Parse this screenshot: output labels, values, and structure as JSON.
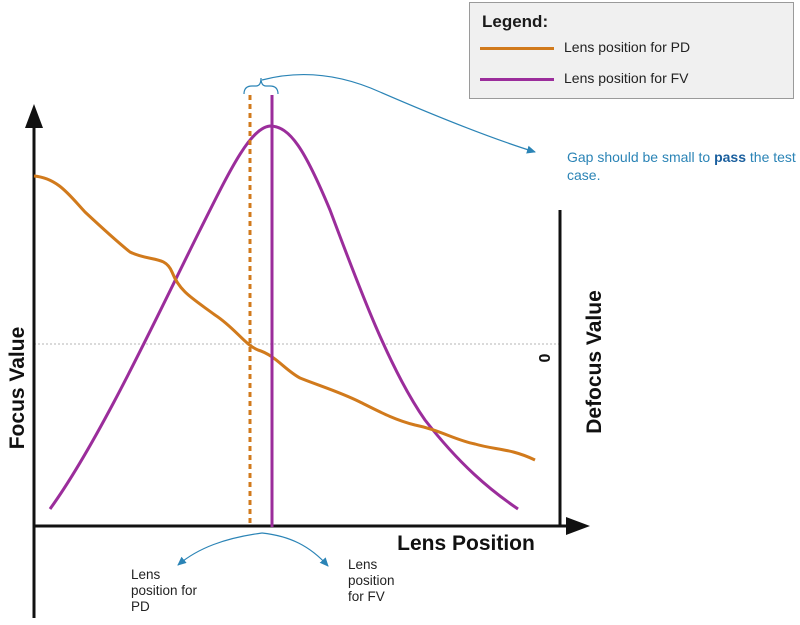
{
  "legend": {
    "title": "Legend:",
    "items": [
      {
        "label": "Lens position for PD",
        "color": "#d17a1c"
      },
      {
        "label": "Lens position for FV",
        "color": "#9b2d9b"
      }
    ]
  },
  "axes": {
    "x_label": "Lens Position",
    "y_left_label": "Focus Value",
    "y_right_label": "Defocus Value",
    "y_right_zero": "0"
  },
  "annotation": {
    "prefix": "Gap should be small to ",
    "emphasis": "pass",
    "suffix": " the test case."
  },
  "markers": {
    "pd_label": "Lens position for PD",
    "fv_label": "Lens position for FV"
  },
  "colors": {
    "pd": "#d17a1c",
    "fv": "#9b2d9b",
    "arrow": "#2b84b6",
    "axis": "#111111",
    "zero_line": "#b5b5b5"
  }
}
